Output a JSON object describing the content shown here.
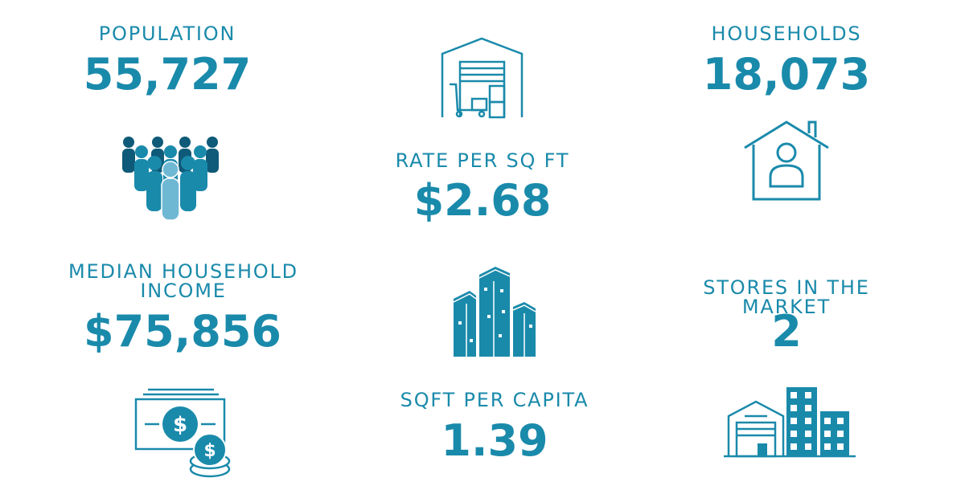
{
  "colors": {
    "accent": "#1a8aab",
    "dark": "#0e5a78",
    "light": "#6fb8d4"
  },
  "stats": {
    "population": {
      "label": "POPULATION",
      "value": "55,727",
      "icon": "people-group-icon"
    },
    "households": {
      "label": "HOUSEHOLDS",
      "value": "18,073",
      "icon": "house-person-icon"
    },
    "rate": {
      "label": "RATE PER SQ FT",
      "value": "$2.68",
      "icon": "warehouse-icon"
    },
    "income": {
      "label_line1": "MEDIAN HOUSEHOLD",
      "label_line2": "INCOME",
      "value": "$75,856",
      "icon": "money-bill-coins-icon"
    },
    "stores": {
      "label_line1": "STORES IN THE",
      "label_line2": "MARKET",
      "value": "2",
      "icon": "store-buildings-icon"
    },
    "sqft": {
      "label": "SQFT PER CAPITA",
      "value": "1.39",
      "icon": "skyscrapers-icon"
    }
  }
}
